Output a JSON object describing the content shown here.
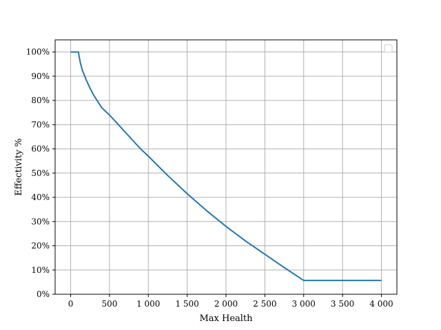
{
  "chart_data": {
    "type": "line",
    "xlabel": "Max Health",
    "ylabel": "Effectivity %",
    "xlim": [
      -200,
      4200
    ],
    "ylim": [
      0,
      1.05
    ],
    "x_ticks": [
      0,
      500,
      1000,
      1500,
      2000,
      2500,
      3000,
      3500,
      4000
    ],
    "x_tick_labels": [
      "0",
      "500",
      "1 000",
      "1 500",
      "2 000",
      "2 500",
      "3 000",
      "3 500",
      "4 000"
    ],
    "y_ticks": [
      0,
      0.1,
      0.2,
      0.3,
      0.4,
      0.5,
      0.6,
      0.7,
      0.8,
      0.9,
      1.0
    ],
    "y_tick_labels": [
      "0%",
      "10%",
      "20%",
      "30%",
      "40%",
      "50%",
      "60%",
      "70%",
      "80%",
      "90%",
      "100%"
    ],
    "grid": true,
    "legend": "top-right (empty box)",
    "colors": {
      "line": "#1f77b4",
      "grid": "#b0b0b0"
    },
    "series": [
      {
        "x": [
          0,
          100,
          110,
          125,
          150,
          200,
          250,
          300,
          400,
          500,
          600,
          700,
          800,
          900,
          1000,
          1250,
          1500,
          1750,
          2000,
          2250,
          2500,
          2750,
          3000,
          3250,
          3500,
          3750,
          4000
        ],
        "values": [
          1.0,
          1.0,
          0.98,
          0.955,
          0.925,
          0.885,
          0.85,
          0.82,
          0.77,
          0.74,
          0.705,
          0.67,
          0.635,
          0.6,
          0.57,
          0.49,
          0.415,
          0.345,
          0.28,
          0.22,
          0.165,
          0.11,
          0.057,
          0.057,
          0.057,
          0.057,
          0.057
        ]
      }
    ]
  }
}
